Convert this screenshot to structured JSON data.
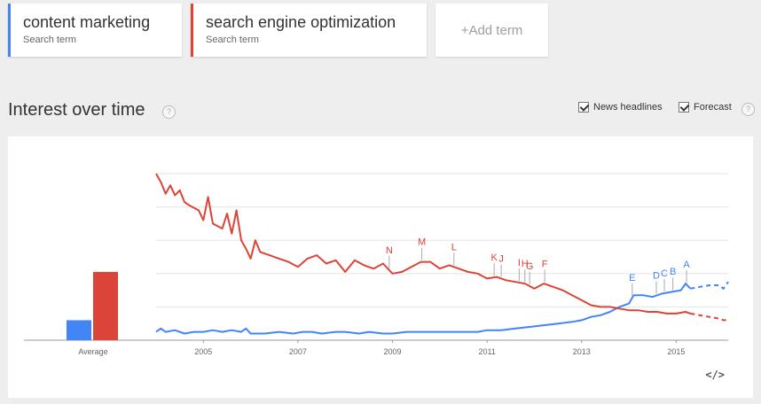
{
  "terms": [
    {
      "name": "content marketing",
      "sub": "Search term",
      "color": "#4285f4"
    },
    {
      "name": "search engine optimization",
      "sub": "Search term",
      "color": "#db4437"
    }
  ],
  "add_term": "+Add term",
  "section": {
    "title": "Interest over time",
    "help": "?",
    "news_headlines": "News headlines",
    "forecast": "Forecast"
  },
  "chart_data": {
    "type": "line",
    "bar_label": "Average",
    "averages": [
      {
        "name": "content marketing",
        "value": 12
      },
      {
        "name": "search engine optimization",
        "value": 41
      }
    ],
    "x_ticks": [
      "2005",
      "2007",
      "2009",
      "2011",
      "2013",
      "2015"
    ],
    "ylim": [
      0,
      100
    ],
    "series": [
      {
        "name": "content marketing",
        "color": "#4285f4",
        "points": [
          [
            2004.0,
            5
          ],
          [
            2004.1,
            7
          ],
          [
            2004.2,
            5
          ],
          [
            2004.4,
            6
          ],
          [
            2004.6,
            4
          ],
          [
            2004.8,
            5
          ],
          [
            2005.0,
            5
          ],
          [
            2005.2,
            6
          ],
          [
            2005.4,
            5
          ],
          [
            2005.6,
            6
          ],
          [
            2005.8,
            5
          ],
          [
            2005.9,
            7
          ],
          [
            2006.0,
            4
          ],
          [
            2006.3,
            4
          ],
          [
            2006.6,
            5
          ],
          [
            2006.9,
            4
          ],
          [
            2007.1,
            5
          ],
          [
            2007.3,
            5
          ],
          [
            2007.5,
            4
          ],
          [
            2007.8,
            5
          ],
          [
            2008.0,
            5
          ],
          [
            2008.3,
            4
          ],
          [
            2008.5,
            5
          ],
          [
            2008.8,
            4
          ],
          [
            2009.0,
            4
          ],
          [
            2009.3,
            5
          ],
          [
            2009.6,
            5
          ],
          [
            2009.9,
            5
          ],
          [
            2010.2,
            5
          ],
          [
            2010.5,
            5
          ],
          [
            2010.8,
            5
          ],
          [
            2011.0,
            6
          ],
          [
            2011.3,
            6
          ],
          [
            2011.6,
            7
          ],
          [
            2011.9,
            8
          ],
          [
            2012.2,
            9
          ],
          [
            2012.5,
            10
          ],
          [
            2012.8,
            11
          ],
          [
            2013.0,
            12
          ],
          [
            2013.2,
            14
          ],
          [
            2013.4,
            15
          ],
          [
            2013.6,
            17
          ],
          [
            2013.8,
            20
          ],
          [
            2014.0,
            22
          ],
          [
            2014.1,
            27
          ],
          [
            2014.3,
            27
          ],
          [
            2014.5,
            26
          ],
          [
            2014.7,
            28
          ],
          [
            2014.9,
            29
          ],
          [
            2015.1,
            30
          ],
          [
            2015.2,
            34
          ],
          [
            2015.3,
            31
          ]
        ],
        "forecast": [
          [
            2015.3,
            31
          ],
          [
            2015.5,
            32
          ],
          [
            2015.7,
            33
          ],
          [
            2015.9,
            33
          ],
          [
            2016.0,
            31
          ],
          [
            2016.1,
            35
          ]
        ]
      },
      {
        "name": "search engine optimization",
        "color": "#db4437",
        "points": [
          [
            2004.0,
            100
          ],
          [
            2004.1,
            95
          ],
          [
            2004.2,
            88
          ],
          [
            2004.3,
            93
          ],
          [
            2004.4,
            87
          ],
          [
            2004.5,
            90
          ],
          [
            2004.6,
            83
          ],
          [
            2004.7,
            81
          ],
          [
            2004.9,
            78
          ],
          [
            2005.0,
            72
          ],
          [
            2005.1,
            86
          ],
          [
            2005.2,
            70
          ],
          [
            2005.4,
            67
          ],
          [
            2005.5,
            76
          ],
          [
            2005.6,
            64
          ],
          [
            2005.7,
            78
          ],
          [
            2005.8,
            60
          ],
          [
            2005.9,
            55
          ],
          [
            2006.0,
            49
          ],
          [
            2006.1,
            60
          ],
          [
            2006.2,
            53
          ],
          [
            2006.4,
            51
          ],
          [
            2006.6,
            49
          ],
          [
            2006.8,
            47
          ],
          [
            2007.0,
            44
          ],
          [
            2007.2,
            49
          ],
          [
            2007.4,
            51
          ],
          [
            2007.6,
            46
          ],
          [
            2007.8,
            48
          ],
          [
            2008.0,
            41
          ],
          [
            2008.2,
            48
          ],
          [
            2008.4,
            45
          ],
          [
            2008.6,
            43
          ],
          [
            2008.8,
            46
          ],
          [
            2009.0,
            40
          ],
          [
            2009.2,
            41
          ],
          [
            2009.4,
            44
          ],
          [
            2009.6,
            47
          ],
          [
            2009.8,
            47
          ],
          [
            2010.0,
            43
          ],
          [
            2010.2,
            45
          ],
          [
            2010.4,
            43
          ],
          [
            2010.6,
            41
          ],
          [
            2010.8,
            40
          ],
          [
            2011.0,
            37
          ],
          [
            2011.2,
            38
          ],
          [
            2011.4,
            36
          ],
          [
            2011.6,
            35
          ],
          [
            2011.8,
            34
          ],
          [
            2012.0,
            31
          ],
          [
            2012.2,
            34
          ],
          [
            2012.4,
            32
          ],
          [
            2012.6,
            30
          ],
          [
            2012.8,
            27
          ],
          [
            2013.0,
            24
          ],
          [
            2013.2,
            21
          ],
          [
            2013.4,
            20
          ],
          [
            2013.6,
            20
          ],
          [
            2013.8,
            19
          ],
          [
            2014.0,
            18
          ],
          [
            2014.2,
            18
          ],
          [
            2014.4,
            17
          ],
          [
            2014.6,
            17
          ],
          [
            2014.8,
            16
          ],
          [
            2015.0,
            16
          ],
          [
            2015.2,
            17
          ],
          [
            2015.3,
            16
          ]
        ],
        "forecast": [
          [
            2015.3,
            16
          ],
          [
            2015.5,
            15
          ],
          [
            2015.7,
            14
          ],
          [
            2015.9,
            13
          ],
          [
            2016.0,
            12
          ],
          [
            2016.1,
            12
          ]
        ]
      }
    ],
    "annotations": [
      {
        "label": "N",
        "x": 2008.93,
        "series": 1
      },
      {
        "label": "M",
        "x": 2009.62,
        "series": 1
      },
      {
        "label": "L",
        "x": 2010.3,
        "series": 1
      },
      {
        "label": "K",
        "x": 2011.15,
        "series": 1
      },
      {
        "label": "J",
        "x": 2011.3,
        "series": 1
      },
      {
        "label": "I",
        "x": 2011.68,
        "series": 1
      },
      {
        "label": "H",
        "x": 2011.8,
        "series": 1
      },
      {
        "label": "G",
        "x": 2011.9,
        "series": 1
      },
      {
        "label": "F",
        "x": 2012.22,
        "series": 1
      },
      {
        "label": "E",
        "x": 2014.07,
        "series": 0
      },
      {
        "label": "D",
        "x": 2014.58,
        "series": 0
      },
      {
        "label": "C",
        "x": 2014.75,
        "series": 0
      },
      {
        "label": "B",
        "x": 2014.93,
        "series": 0
      },
      {
        "label": "A",
        "x": 2015.22,
        "series": 0
      }
    ]
  },
  "embed_label": "</>"
}
